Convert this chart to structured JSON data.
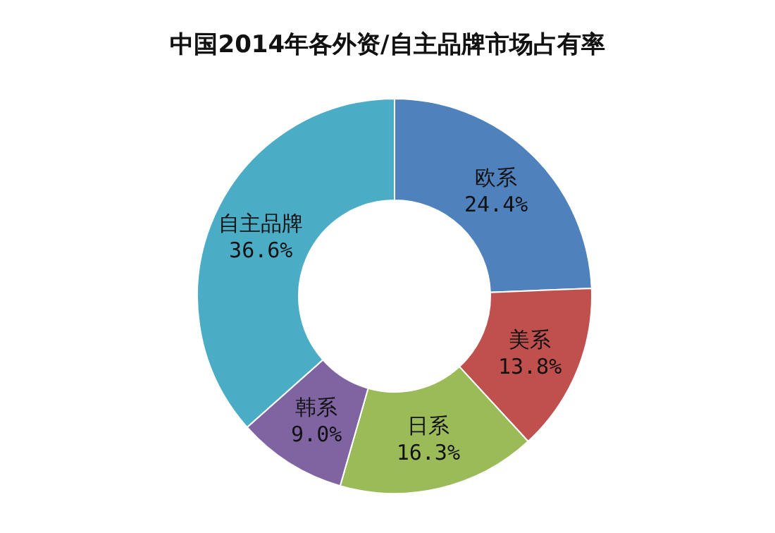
{
  "chart_data": {
    "type": "donut",
    "title": "中国2014年各外资/自主品牌市场占有率",
    "categories": [
      "欧系",
      "美系",
      "日系",
      "韩系",
      "自主品牌"
    ],
    "values": [
      24.4,
      13.8,
      16.3,
      9.0,
      36.6
    ],
    "colors": [
      "#4f81bd",
      "#c0504d",
      "#9bbb59",
      "#8064a2",
      "#4bacc6"
    ],
    "value_labels": [
      "24.4%",
      "13.8%",
      "16.3%",
      "9.0%",
      "36.6%"
    ]
  }
}
